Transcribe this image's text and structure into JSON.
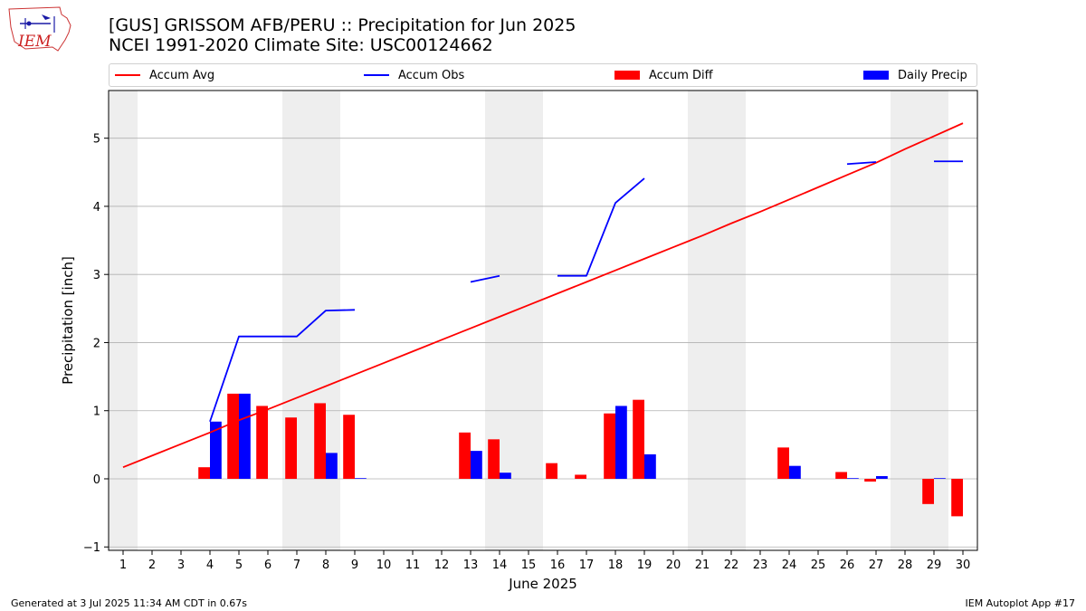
{
  "header": {
    "title": "[GUS] GRISSOM AFB/PERU :: Precipitation for Jun 2025",
    "subtitle": "NCEI 1991-2020 Climate Site: USC00124662",
    "logo_text": "IEM"
  },
  "footer": {
    "left": "Generated at 3 Jul 2025 11:34 AM CDT in 0.67s",
    "right": "IEM Autoplot App #17"
  },
  "colors": {
    "avg": "#ff0000",
    "obs": "#0000ff",
    "diff": "#ff0000",
    "daily": "#0000ff",
    "weekend_band": "#eeeeee",
    "grid": "#b0b0b0"
  },
  "chart_data": {
    "type": "bar",
    "xlabel": "June 2025",
    "ylabel": "Precipitation [inch]",
    "x": [
      1,
      2,
      3,
      4,
      5,
      6,
      7,
      8,
      9,
      10,
      11,
      12,
      13,
      14,
      15,
      16,
      17,
      18,
      19,
      20,
      21,
      22,
      23,
      24,
      25,
      26,
      27,
      28,
      29,
      30
    ],
    "xlim": [
      0.5,
      30.5
    ],
    "ylim": [
      -1.05,
      5.7
    ],
    "yticks": [
      -1,
      0,
      1,
      2,
      3,
      4,
      5
    ],
    "grid": "y",
    "legend_placement": "top",
    "weekend_days": [
      1,
      7,
      8,
      14,
      15,
      21,
      22,
      28,
      29
    ],
    "series": [
      {
        "name": "Accum Avg",
        "kind": "line",
        "values": [
          0.17,
          0.34,
          0.51,
          0.68,
          0.86,
          1.02,
          1.19,
          1.36,
          1.53,
          1.7,
          1.87,
          2.04,
          2.21,
          2.38,
          2.55,
          2.72,
          2.89,
          3.06,
          3.23,
          3.4,
          3.57,
          3.75,
          3.92,
          4.1,
          4.28,
          4.46,
          4.64,
          4.84,
          5.03,
          5.22
        ]
      },
      {
        "name": "Accum Obs",
        "kind": "line",
        "values": [
          null,
          null,
          null,
          0.84,
          2.09,
          2.09,
          2.09,
          2.47,
          2.48,
          null,
          null,
          null,
          2.89,
          2.98,
          null,
          2.98,
          2.98,
          4.05,
          4.41,
          null,
          null,
          null,
          null,
          null,
          null,
          4.62,
          4.65,
          null,
          4.66,
          4.66
        ]
      },
      {
        "name": "Accum Diff",
        "kind": "bar",
        "values": [
          0,
          0,
          0,
          0.17,
          1.25,
          1.07,
          0.9,
          1.11,
          0.94,
          0,
          0,
          0,
          0.68,
          0.58,
          0,
          0.23,
          0.06,
          0.96,
          1.16,
          0,
          0,
          0,
          0,
          0.46,
          0,
          0.1,
          -0.04,
          0,
          -0.37,
          -0.55
        ]
      },
      {
        "name": "Daily Precip",
        "kind": "bar",
        "values": [
          0,
          0,
          0,
          0.84,
          1.25,
          0,
          0,
          0.38,
          0.01,
          0,
          0,
          0,
          0.41,
          0.09,
          0,
          0,
          0,
          1.07,
          0.36,
          0,
          0,
          0,
          0,
          0.19,
          0,
          0.01,
          0.04,
          0,
          0.01,
          0
        ]
      }
    ]
  }
}
